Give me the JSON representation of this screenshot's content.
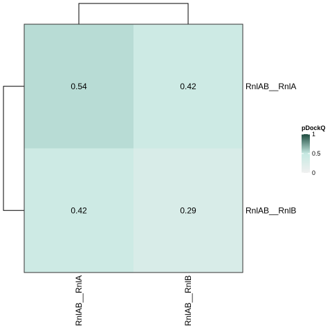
{
  "chart_data": {
    "type": "heatmap",
    "rows": [
      "RnlAB__RnlA",
      "RnlAB__RnlB"
    ],
    "columns": [
      "RnlAB__RnlA",
      "RnlAB__RnlB"
    ],
    "values": [
      [
        0.54,
        0.42
      ],
      [
        0.42,
        0.29
      ]
    ],
    "cell_labels": [
      [
        "0.54",
        "0.42"
      ],
      [
        "0.42",
        "0.29"
      ]
    ],
    "legend": {
      "title": "pDockQ",
      "ticks": [
        {
          "value": 1,
          "label": "1"
        },
        {
          "value": 0.5,
          "label": "0.5"
        },
        {
          "value": 0,
          "label": "0"
        }
      ],
      "color_low": "#f0f0f0",
      "color_mid": "#c6e9e2",
      "color_high": "#1d4a3e"
    },
    "dendrograms": {
      "rows": true,
      "columns": true
    }
  }
}
